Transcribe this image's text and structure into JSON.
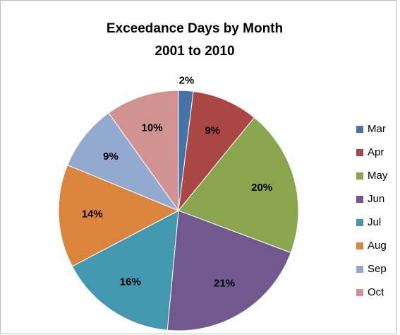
{
  "chart_data": {
    "type": "pie",
    "title": [
      "Exceedance Days by Month",
      "2001 to 2010"
    ],
    "categories": [
      "Mar",
      "Apr",
      "May",
      "Jun",
      "Jul",
      "Aug",
      "Sep",
      "Oct"
    ],
    "values": [
      2,
      9,
      20,
      21,
      16,
      14,
      9,
      10
    ],
    "value_labels": [
      "2%",
      "9%",
      "20%",
      "21%",
      "16%",
      "14%",
      "9%",
      "10%"
    ],
    "colors": [
      "#4572a7",
      "#aa4643",
      "#89a54e",
      "#71588f",
      "#4198af",
      "#db843d",
      "#93a9cf",
      "#d19392"
    ],
    "legend": "right"
  }
}
